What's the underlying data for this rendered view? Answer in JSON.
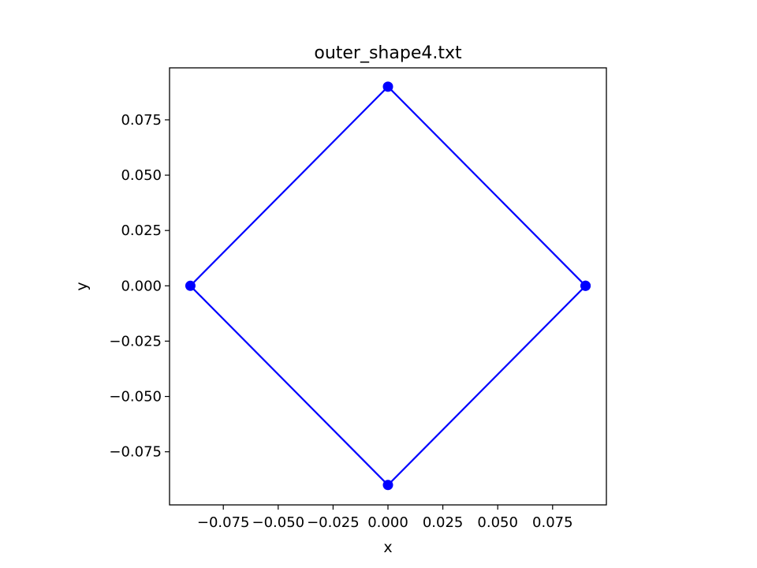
{
  "chart_data": {
    "type": "line",
    "title": "outer_shape4.txt",
    "xlabel": "x",
    "ylabel": "y",
    "xlim": [
      -0.0995,
      0.0995
    ],
    "ylim": [
      -0.099,
      0.0985
    ],
    "xticks": [
      -0.075,
      -0.05,
      -0.025,
      0.0,
      0.025,
      0.05,
      0.075
    ],
    "xtick_labels": [
      "−0.075",
      "−0.050",
      "−0.025",
      "0.000",
      "0.025",
      "0.050",
      "0.075"
    ],
    "yticks": [
      0.075,
      0.05,
      0.025,
      0.0,
      -0.025,
      -0.05,
      -0.075
    ],
    "ytick_labels": [
      "0.075",
      "0.050",
      "0.025",
      "0.000",
      "−0.025",
      "−0.050",
      "−0.075"
    ],
    "grid": false,
    "legend": false,
    "series": [
      {
        "color": "#0000ff",
        "marker": "circle",
        "x": [
          0.09,
          0.0,
          -0.09,
          0.0,
          0.09
        ],
        "y": [
          0.0,
          0.09,
          0.0,
          -0.09,
          0.0
        ]
      }
    ]
  }
}
